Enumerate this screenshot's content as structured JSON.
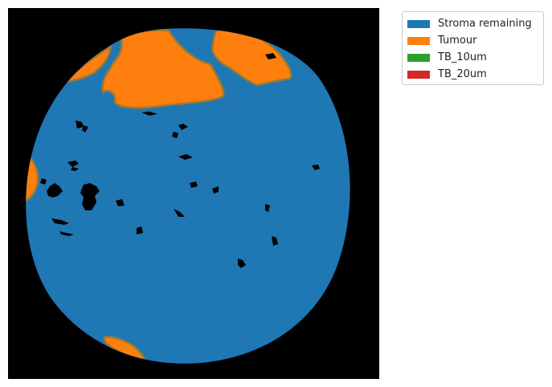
{
  "chart_data": {
    "type": "heatmap",
    "legend": {
      "placement": "upper right, outside axes",
      "entries": [
        {
          "label": "Stroma remaining",
          "color": "#1f77b4"
        },
        {
          "label": "Tumour",
          "color": "#ff7f0e"
        },
        {
          "label": "TB_10um",
          "color": "#2ca02c"
        },
        {
          "label": "TB_20um",
          "color": "#d62728"
        }
      ]
    },
    "background_color": "#000000",
    "boundary_color": "#9a7a35",
    "axes_visible": false,
    "grid": false
  }
}
